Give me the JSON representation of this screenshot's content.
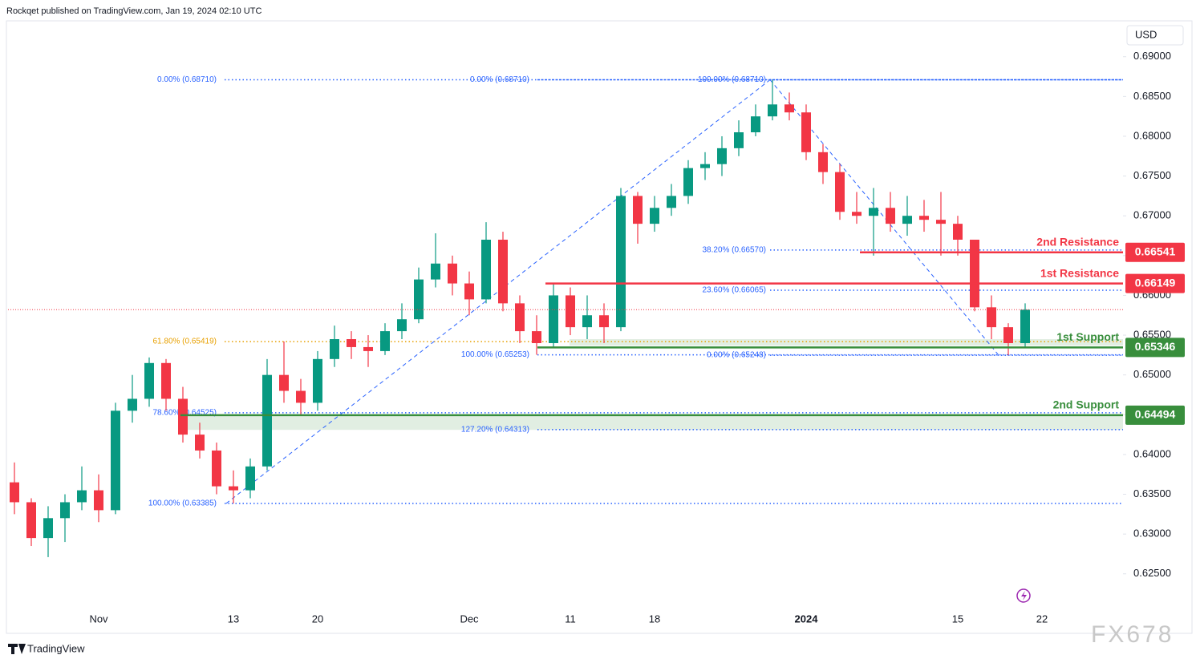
{
  "header": {
    "byline": "Rockqet published on TradingView.com, Jan 19, 2024 02:10 UTC",
    "currency": "USD"
  },
  "footer": {
    "brand": "TradingView",
    "watermark": "FX678"
  },
  "chart_data": {
    "type": "candlestick",
    "categories": [
      null,
      null,
      null,
      null,
      null,
      "Nov",
      null,
      null,
      null,
      null,
      null,
      null,
      null,
      "13",
      null,
      null,
      null,
      null,
      "20",
      null,
      null,
      null,
      null,
      null,
      null,
      null,
      null,
      "Dec",
      null,
      null,
      null,
      null,
      null,
      "11",
      null,
      null,
      null,
      null,
      "18",
      null,
      null,
      null,
      null,
      null,
      null,
      null,
      null,
      "2024",
      null,
      null,
      null,
      null,
      null,
      null,
      null,
      null,
      "15",
      null,
      null,
      null,
      null,
      "22"
    ],
    "open": [
      0.6365,
      0.634,
      0.6295,
      0.632,
      0.634,
      0.6355,
      0.633,
      0.6455,
      0.647,
      0.6515,
      0.647,
      0.6425,
      0.6405,
      0.636,
      0.6355,
      0.6385,
      0.65,
      0.648,
      0.6465,
      0.652,
      0.6545,
      0.6535,
      0.653,
      0.6555,
      0.657,
      0.662,
      0.664,
      0.6615,
      0.6595,
      0.667,
      0.659,
      0.6555,
      0.654,
      0.66,
      0.656,
      0.6575,
      0.656,
      0.6725,
      0.669,
      0.671,
      0.6725,
      0.676,
      0.6765,
      0.6785,
      0.6805,
      0.6825,
      0.684,
      0.683,
      0.678,
      0.6755,
      0.6705,
      0.67,
      0.671,
      0.669,
      0.67,
      0.6695,
      0.669,
      0.667,
      0.6585,
      0.656,
      0.654,
      null
    ],
    "high": [
      0.639,
      0.6345,
      0.6335,
      0.635,
      0.6385,
      0.6375,
      0.6465,
      0.65,
      0.6522,
      0.652,
      0.6485,
      0.644,
      0.6415,
      0.638,
      0.6395,
      0.652,
      0.6542,
      0.6495,
      0.653,
      0.6562,
      0.6555,
      0.655,
      0.6565,
      0.659,
      0.6635,
      0.6678,
      0.665,
      0.663,
      0.6692,
      0.668,
      0.66,
      0.6575,
      0.6615,
      0.661,
      0.66,
      0.659,
      0.6735,
      0.673,
      0.6725,
      0.674,
      0.677,
      0.678,
      0.68,
      0.682,
      0.684,
      0.6871,
      0.6855,
      0.684,
      0.679,
      0.6765,
      0.673,
      0.6735,
      0.673,
      0.6725,
      0.672,
      0.673,
      0.67,
      0.6665,
      0.66,
      0.6565,
      0.659,
      null
    ],
    "low": [
      0.6325,
      0.6285,
      0.6271,
      0.629,
      0.633,
      0.6315,
      0.6325,
      0.644,
      0.646,
      0.6455,
      0.6415,
      0.6395,
      0.635,
      0.63385,
      0.6345,
      0.638,
      0.6465,
      0.645,
      0.6455,
      0.651,
      0.652,
      0.651,
      0.6525,
      0.6545,
      0.6565,
      0.661,
      0.66,
      0.6575,
      0.659,
      0.658,
      0.654,
      0.65253,
      0.6535,
      0.655,
      0.6545,
      0.654,
      0.6555,
      0.6665,
      0.668,
      0.67,
      0.6715,
      0.6745,
      0.675,
      0.6775,
      0.68,
      0.682,
      0.682,
      0.677,
      0.674,
      0.6695,
      0.669,
      0.665,
      0.668,
      0.6675,
      0.668,
      0.665,
      0.665,
      0.658,
      0.6545,
      0.65248,
      0.6535,
      null
    ],
    "close": [
      0.634,
      0.6295,
      0.632,
      0.634,
      0.6355,
      0.633,
      0.6455,
      0.647,
      0.6515,
      0.647,
      0.6425,
      0.6405,
      0.636,
      0.6355,
      0.6385,
      0.65,
      0.648,
      0.6465,
      0.652,
      0.6545,
      0.6535,
      0.653,
      0.6555,
      0.657,
      0.662,
      0.664,
      0.6615,
      0.6595,
      0.667,
      0.659,
      0.6555,
      0.654,
      0.66,
      0.656,
      0.6575,
      0.656,
      0.6725,
      0.669,
      0.671,
      0.6725,
      0.676,
      0.6765,
      0.6785,
      0.6805,
      0.6825,
      0.684,
      0.683,
      0.678,
      0.6755,
      0.6705,
      0.67,
      0.671,
      0.669,
      0.67,
      0.6695,
      0.669,
      0.667,
      0.6585,
      0.656,
      0.654,
      0.6582,
      null
    ],
    "up_color": "#089981",
    "down_color": "#f23645",
    "ylim": [
      0.6214,
      0.6935
    ],
    "yticks": [
      {
        "value": 0.625,
        "label": "0.62500"
      },
      {
        "value": 0.63,
        "label": "0.63000"
      },
      {
        "value": 0.635,
        "label": "0.63500"
      },
      {
        "value": 0.64,
        "label": "0.64000"
      },
      {
        "value": 0.645,
        "label": "0.64500"
      },
      {
        "value": 0.65,
        "label": "0.65000"
      },
      {
        "value": 0.655,
        "label": "0.65500"
      },
      {
        "value": 0.66,
        "label": "0.66000"
      },
      {
        "value": 0.665,
        "label": "0.66500"
      },
      {
        "value": 0.67,
        "label": "0.67000"
      },
      {
        "value": 0.675,
        "label": "0.67500"
      },
      {
        "value": 0.68,
        "label": "0.68000"
      },
      {
        "value": 0.685,
        "label": "0.68500"
      },
      {
        "value": 0.69,
        "label": "0.69000"
      }
    ],
    "fib_levels": [
      {
        "label": "0.00% (0.68710)",
        "value": 0.6871,
        "color": "#2962ff"
      },
      {
        "label": "0.00% (0.68710)",
        "value": 0.6871,
        "color": "#2962ff"
      },
      {
        "label": "100.00% (0.68710)",
        "value": 0.6871,
        "color": "#2962ff"
      },
      {
        "label": "38.20% (0.66570)",
        "value": 0.6657,
        "color": "#2962ff"
      },
      {
        "label": "23.60% (0.66065)",
        "value": 0.66065,
        "color": "#2962ff"
      },
      {
        "label": "61.80% (0.65419)",
        "value": 0.65419,
        "color": "#e8a000"
      },
      {
        "label": "100.00% (0.65253)",
        "value": 0.65253,
        "color": "#2962ff"
      },
      {
        "label": "0.00% (0.65248)",
        "value": 0.65248,
        "color": "#2962ff"
      },
      {
        "label": "78.60% (0.64525)",
        "value": 0.64525,
        "color": "#2962ff"
      },
      {
        "label": "127.20% (0.64313)",
        "value": 0.64313,
        "color": "#2962ff"
      },
      {
        "label": "100.00% (0.63385)",
        "value": 0.63385,
        "color": "#2962ff"
      }
    ],
    "sr_levels": [
      {
        "name": "2nd Resistance",
        "value": 0.66541,
        "color": "#f23645"
      },
      {
        "name": "1st Resistance",
        "value": 0.66149,
        "color": "#f23645"
      },
      {
        "name": "1st Support",
        "value": 0.65346,
        "color": "#388e3c",
        "zone": [
          0.6537,
          0.6545
        ]
      },
      {
        "name": "2nd Support",
        "value": 0.64494,
        "color": "#388e3c",
        "zone": [
          0.6431,
          0.645
        ]
      }
    ]
  }
}
